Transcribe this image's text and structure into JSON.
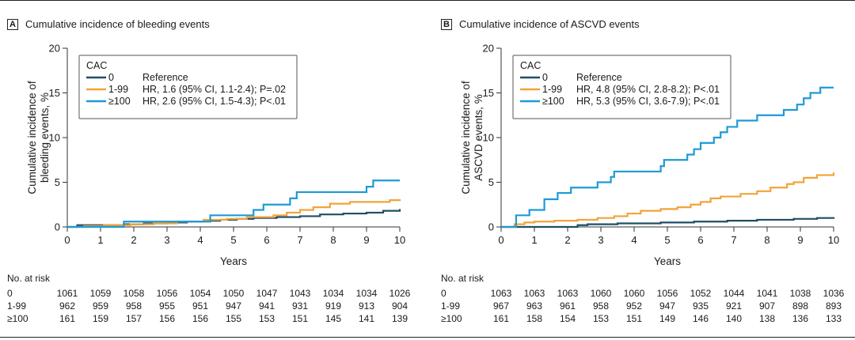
{
  "chart_data": [
    {
      "type": "line",
      "panel": "A",
      "title": "Cumulative incidence of bleeding events",
      "xlabel": "Years",
      "ylabel": "Cumulative incidence of bleeding events, %",
      "ylabel_lines": [
        "Cumulative incidence of",
        "bleeding events, %"
      ],
      "xlim": [
        0,
        10
      ],
      "ylim": [
        0,
        20
      ],
      "xticks": [
        0,
        1,
        2,
        3,
        4,
        5,
        6,
        7,
        8,
        9,
        10
      ],
      "yticks": [
        0,
        5,
        10,
        15,
        20
      ],
      "legend_title": "CAC",
      "series": [
        {
          "name": "0",
          "desc": "Reference",
          "color": "#1f4e63",
          "x": [
            0,
            0.3,
            1.3,
            1.7,
            2.3,
            3,
            3.6,
            4.1,
            4.6,
            5.1,
            5.6,
            6.3,
            7,
            7.6,
            8.3,
            9,
            9.5,
            10
          ],
          "y": [
            0,
            0.2,
            0.2,
            0.3,
            0.4,
            0.5,
            0.6,
            0.7,
            0.8,
            0.9,
            1.0,
            1.1,
            1.2,
            1.4,
            1.5,
            1.6,
            1.8,
            2.0
          ]
        },
        {
          "name": "1-99",
          "desc": "HR, 1.6 (95% CI, 1.1-2.4); P=.02",
          "color": "#f2a33a",
          "x": [
            0,
            0.5,
            1.1,
            1.9,
            2.6,
            3.3,
            4.1,
            4.8,
            5.4,
            6.2,
            6.6,
            7,
            7.4,
            7.9,
            8.5,
            9.2,
            9.7,
            10
          ],
          "y": [
            0,
            0.1,
            0.2,
            0.3,
            0.4,
            0.6,
            0.8,
            0.9,
            1.1,
            1.3,
            1.6,
            1.9,
            2.2,
            2.6,
            2.8,
            2.8,
            3.0,
            3.1
          ]
        },
        {
          "name": "≥100",
          "desc": "HR, 2.6 (95% CI, 1.5-4.3); P<.01",
          "color": "#1d9ad6",
          "x": [
            0,
            1.7,
            2.4,
            4.3,
            5.6,
            5.9,
            6.7,
            6.9,
            8.5,
            8.7,
            9,
            9.2,
            10
          ],
          "y": [
            0,
            0.6,
            0.6,
            1.3,
            1.9,
            2.5,
            3.2,
            3.9,
            3.9,
            3.9,
            4.5,
            5.2,
            5.2
          ]
        }
      ],
      "risk_table": {
        "title": "No. at risk",
        "rows": [
          {
            "label": "0",
            "values": [
              1061,
              1059,
              1058,
              1056,
              1054,
              1050,
              1047,
              1043,
              1034,
              1034,
              1026
            ]
          },
          {
            "label": "1-99",
            "values": [
              962,
              959,
              958,
              955,
              951,
              947,
              941,
              931,
              919,
              913,
              904
            ]
          },
          {
            "label": "≥100",
            "values": [
              161,
              159,
              157,
              156,
              156,
              155,
              153,
              151,
              145,
              141,
              139
            ]
          }
        ]
      }
    },
    {
      "type": "line",
      "panel": "B",
      "title": "Cumulative incidence of ASCVD events",
      "xlabel": "Years",
      "ylabel": "Cumulative incidence of ASCVD events, %",
      "ylabel_lines": [
        "Cumulative incidence of",
        "ASCVD events, %"
      ],
      "xlim": [
        0,
        10
      ],
      "ylim": [
        0,
        20
      ],
      "xticks": [
        0,
        1,
        2,
        3,
        4,
        5,
        6,
        7,
        8,
        9,
        10
      ],
      "yticks": [
        0,
        5,
        10,
        15,
        20
      ],
      "legend_title": "CAC",
      "series": [
        {
          "name": "0",
          "desc": "Reference",
          "color": "#1f4e63",
          "x": [
            0,
            2.3,
            2.6,
            3.5,
            4.8,
            5.8,
            6.8,
            7.7,
            8.8,
            9.5,
            10
          ],
          "y": [
            0,
            0.2,
            0.3,
            0.4,
            0.5,
            0.6,
            0.7,
            0.8,
            0.9,
            1.0,
            1.1
          ]
        },
        {
          "name": "1-99",
          "desc": "HR, 4.8 (95% CI, 2.8-8.2); P<.01",
          "color": "#f2a33a",
          "x": [
            0,
            0.4,
            0.7,
            1,
            1.6,
            2.3,
            2.9,
            3.4,
            3.8,
            4.2,
            4.8,
            5.3,
            5.7,
            6,
            6.3,
            6.6,
            7.2,
            7.7,
            8.1,
            8.6,
            8.8,
            9.1,
            9.5,
            10
          ],
          "y": [
            0,
            0.3,
            0.5,
            0.6,
            0.7,
            0.8,
            1.0,
            1.2,
            1.5,
            1.8,
            2.0,
            2.2,
            2.5,
            2.8,
            3.2,
            3.4,
            3.7,
            4.0,
            4.4,
            4.8,
            5.0,
            5.5,
            5.8,
            6.1
          ]
        },
        {
          "name": "≥100",
          "desc": "HR, 5.3 (95% CI, 3.6-7.9); P<.01",
          "color": "#1d9ad6",
          "x": [
            0,
            0.45,
            0.85,
            1.3,
            1.7,
            2.1,
            2.9,
            3.3,
            3.4,
            4.8,
            4.9,
            5.6,
            5.8,
            6,
            6.4,
            6.6,
            6.8,
            7.1,
            7.7,
            8.5,
            8.9,
            9.1,
            9.3,
            9.6,
            10
          ],
          "y": [
            0,
            1.3,
            1.9,
            3.1,
            3.8,
            4.4,
            5.0,
            5.6,
            6.2,
            6.8,
            7.5,
            8.1,
            8.7,
            9.4,
            10.0,
            10.6,
            11.2,
            11.9,
            12.5,
            13.1,
            13.7,
            14.4,
            15.0,
            15.6,
            15.6
          ]
        }
      ],
      "risk_table": {
        "title": "No. at risk",
        "rows": [
          {
            "label": "0",
            "values": [
              1063,
              1063,
              1063,
              1060,
              1060,
              1056,
              1052,
              1044,
              1041,
              1038,
              1036
            ]
          },
          {
            "label": "1-99",
            "values": [
              967,
              963,
              961,
              958,
              952,
              947,
              935,
              921,
              907,
              898,
              893
            ]
          },
          {
            "label": "≥100",
            "values": [
              161,
              158,
              154,
              153,
              151,
              149,
              146,
              140,
              138,
              136,
              133
            ]
          }
        ]
      }
    }
  ]
}
